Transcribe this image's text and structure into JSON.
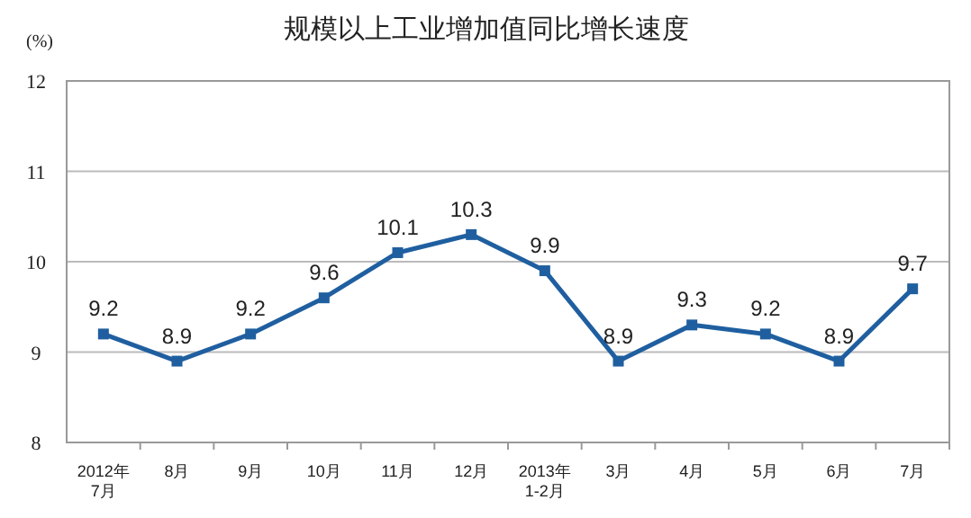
{
  "chart_data": {
    "type": "line",
    "title": "规模以上工业增加值同比增长速度",
    "ylabel": "(%)",
    "categories": [
      "2012年\n7月",
      "8月",
      "9月",
      "10月",
      "11月",
      "12月",
      "2013年\n1-2月",
      "3月",
      "4月",
      "5月",
      "6月",
      "7月"
    ],
    "series": [
      {
        "color": "#1f5fa0",
        "values": [
          9.2,
          8.9,
          9.2,
          9.6,
          10.1,
          10.3,
          9.9,
          8.9,
          9.3,
          9.2,
          8.9,
          9.7
        ]
      }
    ],
    "ylim": [
      8,
      12
    ],
    "yticks": [
      8,
      9,
      10,
      11,
      12
    ],
    "grid": "y",
    "marker": "square",
    "line_style": "solid",
    "data_labels": true
  }
}
